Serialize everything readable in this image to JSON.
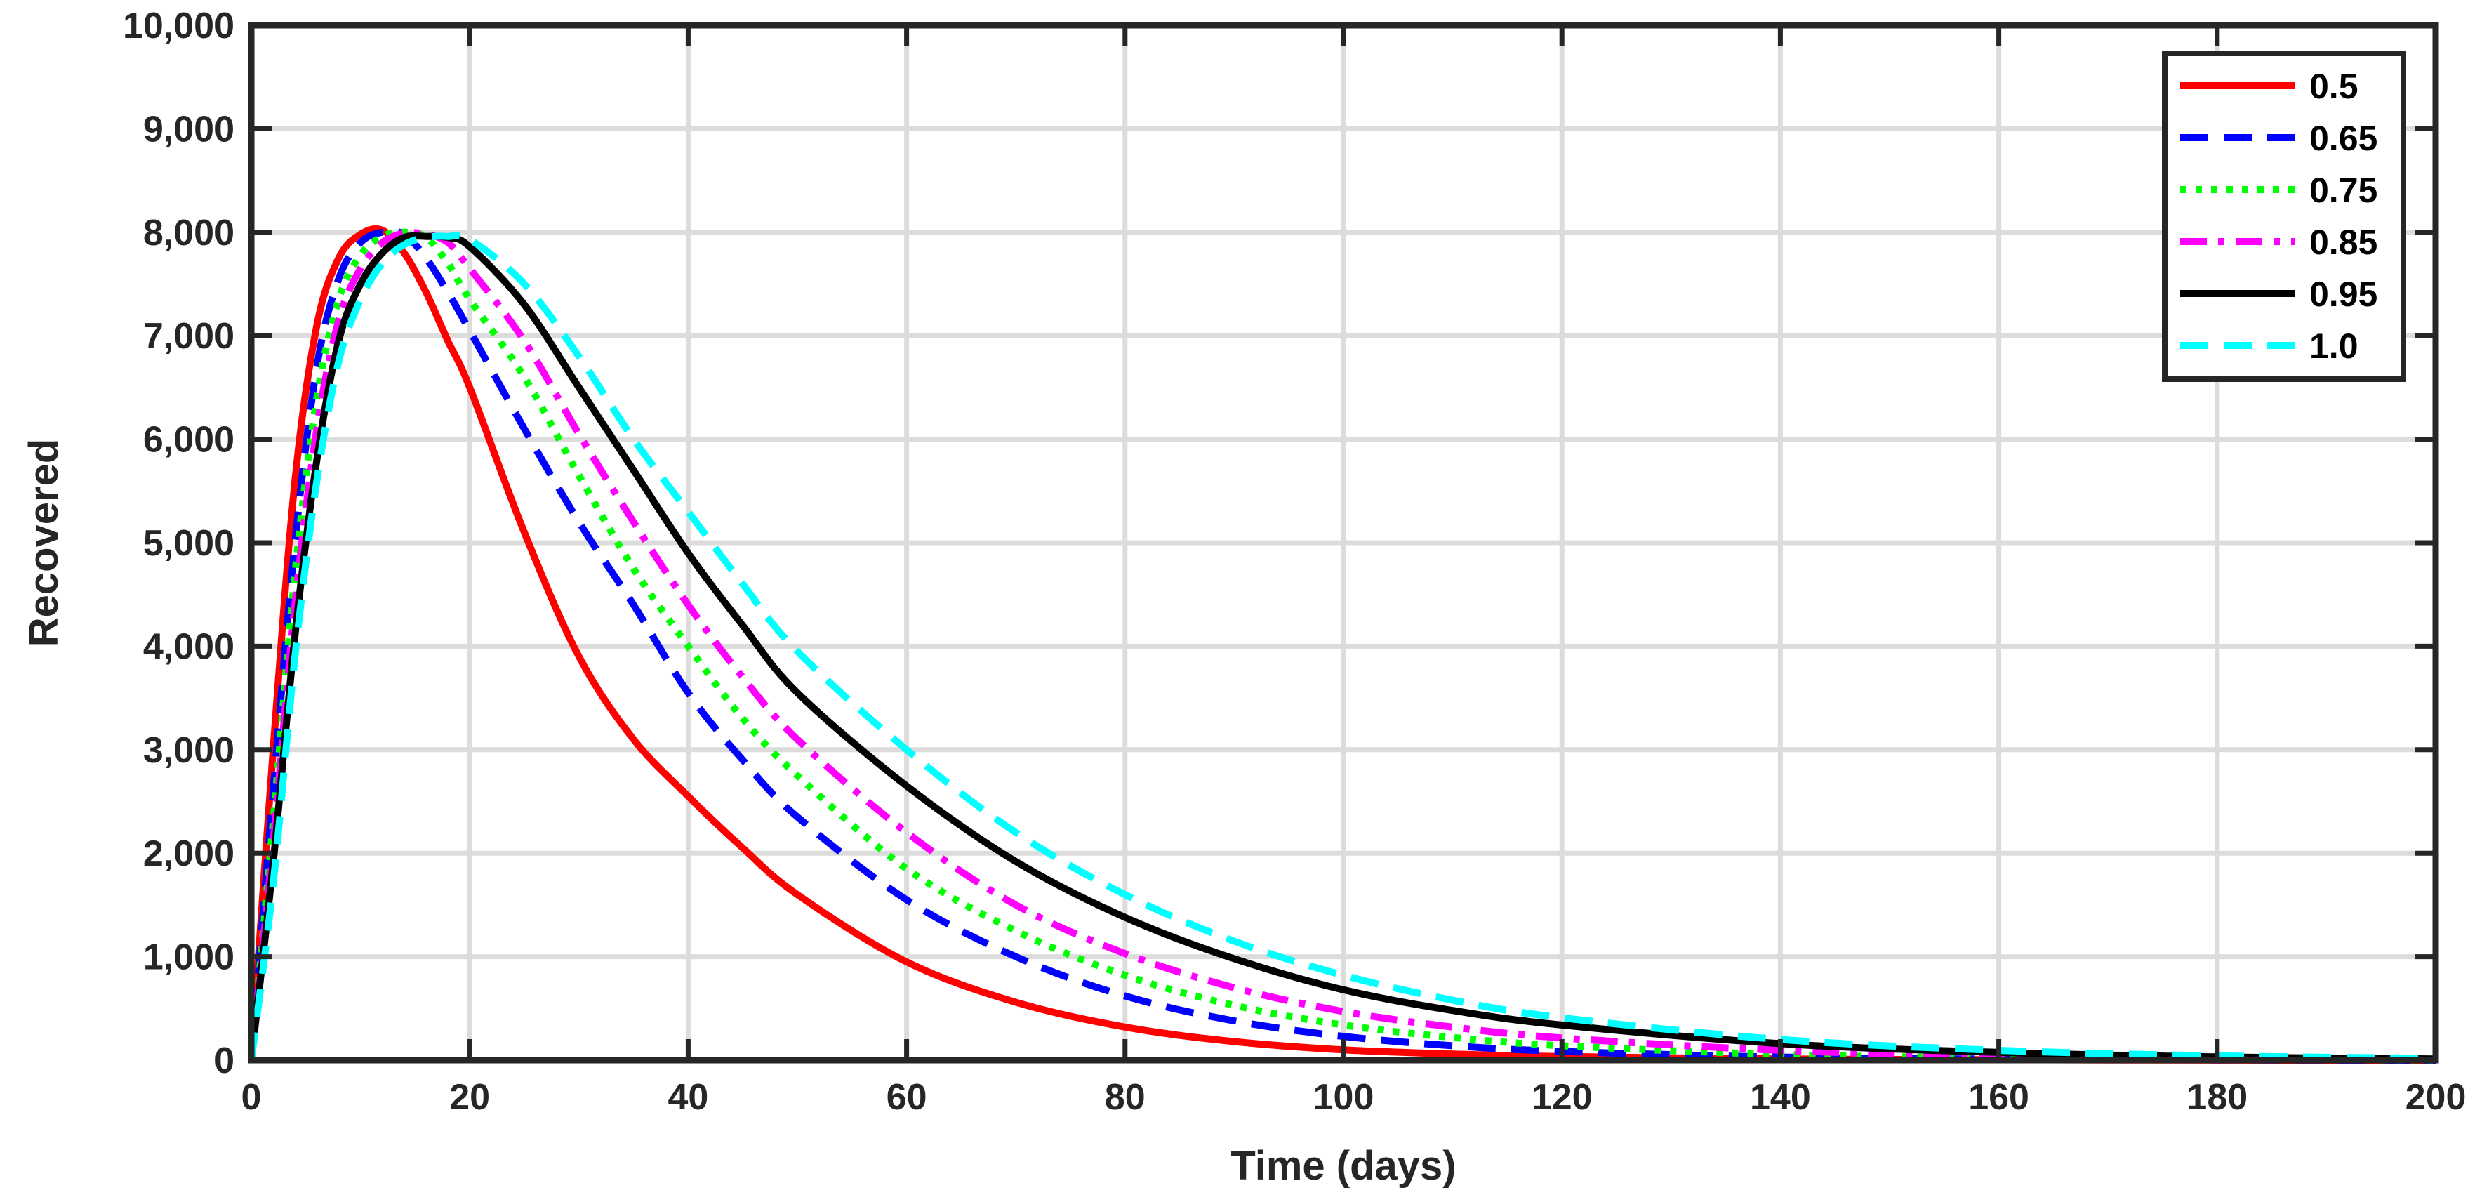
{
  "chart_data": {
    "type": "line",
    "title": "",
    "xlabel": "Time (days)",
    "ylabel": "Recovered",
    "xlim": [
      0,
      200
    ],
    "ylim": [
      0,
      10000
    ],
    "x_ticks": [
      0,
      20,
      40,
      60,
      80,
      100,
      120,
      140,
      160,
      180,
      200
    ],
    "x_tick_labels": [
      "0",
      "20",
      "40",
      "60",
      "80",
      "100",
      "120",
      "140",
      "160",
      "180",
      "200"
    ],
    "y_ticks": [
      0,
      1000,
      2000,
      3000,
      4000,
      5000,
      6000,
      7000,
      8000,
      9000,
      10000
    ],
    "y_tick_labels": [
      "0",
      "1,000",
      "2,000",
      "3,000",
      "4,000",
      "5,000",
      "6,000",
      "7,000",
      "8,000",
      "9,000",
      "10,000"
    ],
    "grid": true,
    "legend_position": "top-right",
    "x": [
      0,
      2,
      4,
      6,
      8,
      10,
      12,
      14,
      16,
      18,
      20,
      25,
      30,
      35,
      40,
      45,
      50,
      60,
      70,
      80,
      90,
      100,
      110,
      120,
      140,
      160,
      180,
      200
    ],
    "series": [
      {
        "name": "0.5",
        "color": "#ff0000",
        "dash": "solid",
        "values": [
          0,
          3000,
          5600,
          7100,
          7750,
          7980,
          8020,
          7800,
          7420,
          6950,
          6500,
          5100,
          3900,
          3100,
          2550,
          2050,
          1600,
          950,
          560,
          320,
          180,
          100,
          60,
          35,
          12,
          4,
          1,
          0
        ]
      },
      {
        "name": "0.65",
        "color": "#0000ff",
        "dash": "dashed",
        "values": [
          0,
          2600,
          5000,
          6700,
          7550,
          7900,
          8000,
          7980,
          7750,
          7420,
          7050,
          6100,
          5200,
          4400,
          3550,
          2900,
          2350,
          1550,
          1000,
          620,
          380,
          230,
          140,
          85,
          30,
          10,
          3,
          0
        ]
      },
      {
        "name": "0.75",
        "color": "#00ff00",
        "dash": "dotted",
        "values": [
          0,
          2300,
          4700,
          6400,
          7350,
          7780,
          7960,
          8000,
          7950,
          7700,
          7350,
          6600,
          5650,
          4750,
          4000,
          3300,
          2750,
          1850,
          1250,
          820,
          530,
          340,
          220,
          140,
          55,
          20,
          7,
          2
        ]
      },
      {
        "name": "0.85",
        "color": "#ff00ff",
        "dash": "dashdot",
        "values": [
          0,
          2100,
          4400,
          6100,
          7150,
          7650,
          7900,
          7990,
          7980,
          7900,
          7650,
          6950,
          6050,
          5200,
          4400,
          3700,
          3100,
          2200,
          1500,
          1030,
          700,
          470,
          320,
          215,
          95,
          40,
          15,
          5
        ]
      },
      {
        "name": "0.95",
        "color": "#000000",
        "dash": "solid",
        "values": [
          0,
          1900,
          4100,
          5800,
          6950,
          7500,
          7800,
          7950,
          7960,
          7950,
          7860,
          7300,
          6500,
          5700,
          4900,
          4200,
          3550,
          2650,
          1920,
          1380,
          980,
          680,
          480,
          340,
          160,
          75,
          32,
          12
        ]
      },
      {
        "name": "1.0",
        "color": "#00ffff",
        "dash": "dashed",
        "values": [
          0,
          1700,
          3900,
          5600,
          6750,
          7350,
          7700,
          7880,
          7950,
          7960,
          7930,
          7500,
          6800,
          6000,
          5300,
          4600,
          3950,
          3000,
          2200,
          1600,
          1150,
          820,
          580,
          410,
          200,
          95,
          42,
          18
        ]
      }
    ]
  }
}
